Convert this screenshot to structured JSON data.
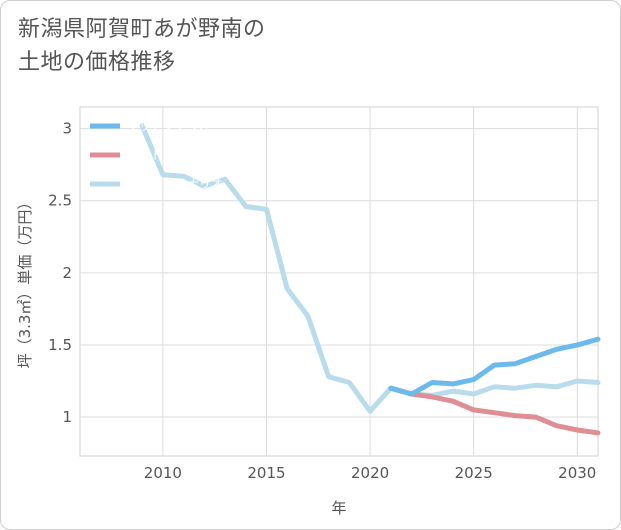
{
  "title": "新潟県阿賀町あが野南の\n土地の価格推移",
  "chart_data": {
    "type": "line",
    "title": "新潟県阿賀町あが野南の\n土地の価格推移",
    "xlabel": "年",
    "ylabel": "坪（3.3㎡）単価（万円）",
    "xlim": [
      2006,
      2031
    ],
    "ylim": [
      0.73,
      3.15
    ],
    "xticks": [
      2010,
      2015,
      2020,
      2025,
      2030
    ],
    "yticks": [
      1,
      1.5,
      2,
      2.5,
      3
    ],
    "ytick_labels": [
      "1",
      "1.5",
      "2",
      "2.5",
      "3"
    ],
    "grid": true,
    "legend_position": "top-left",
    "series": [
      {
        "name": "グッドシナリオ",
        "color": "#6cb9ec",
        "x": [
          2021,
          2022,
          2023,
          2024,
          2025,
          2026,
          2027,
          2028,
          2029,
          2030,
          2031
        ],
        "values": [
          1.2,
          1.16,
          1.24,
          1.23,
          1.26,
          1.36,
          1.37,
          1.42,
          1.47,
          1.5,
          1.54
        ]
      },
      {
        "name": "バッドシナリオ",
        "color": "#e08e96",
        "x": [
          2021,
          2022,
          2023,
          2024,
          2025,
          2026,
          2027,
          2028,
          2029,
          2030,
          2031
        ],
        "values": [
          1.2,
          1.16,
          1.14,
          1.11,
          1.05,
          1.03,
          1.01,
          1.0,
          0.94,
          0.91,
          0.89
        ]
      },
      {
        "name": "ノーマルシナリオ",
        "color": "#b8dceb",
        "x": [
          2009,
          2010,
          2011,
          2012,
          2013,
          2014,
          2015,
          2016,
          2017,
          2018,
          2019,
          2020,
          2021,
          2022,
          2023,
          2024,
          2025,
          2026,
          2027,
          2028,
          2029,
          2030,
          2031
        ],
        "values": [
          3.02,
          2.68,
          2.67,
          2.6,
          2.65,
          2.46,
          2.44,
          1.89,
          1.7,
          1.28,
          1.24,
          1.04,
          1.2,
          1.16,
          1.15,
          1.18,
          1.16,
          1.21,
          1.2,
          1.22,
          1.21,
          1.25,
          1.24
        ]
      }
    ]
  }
}
